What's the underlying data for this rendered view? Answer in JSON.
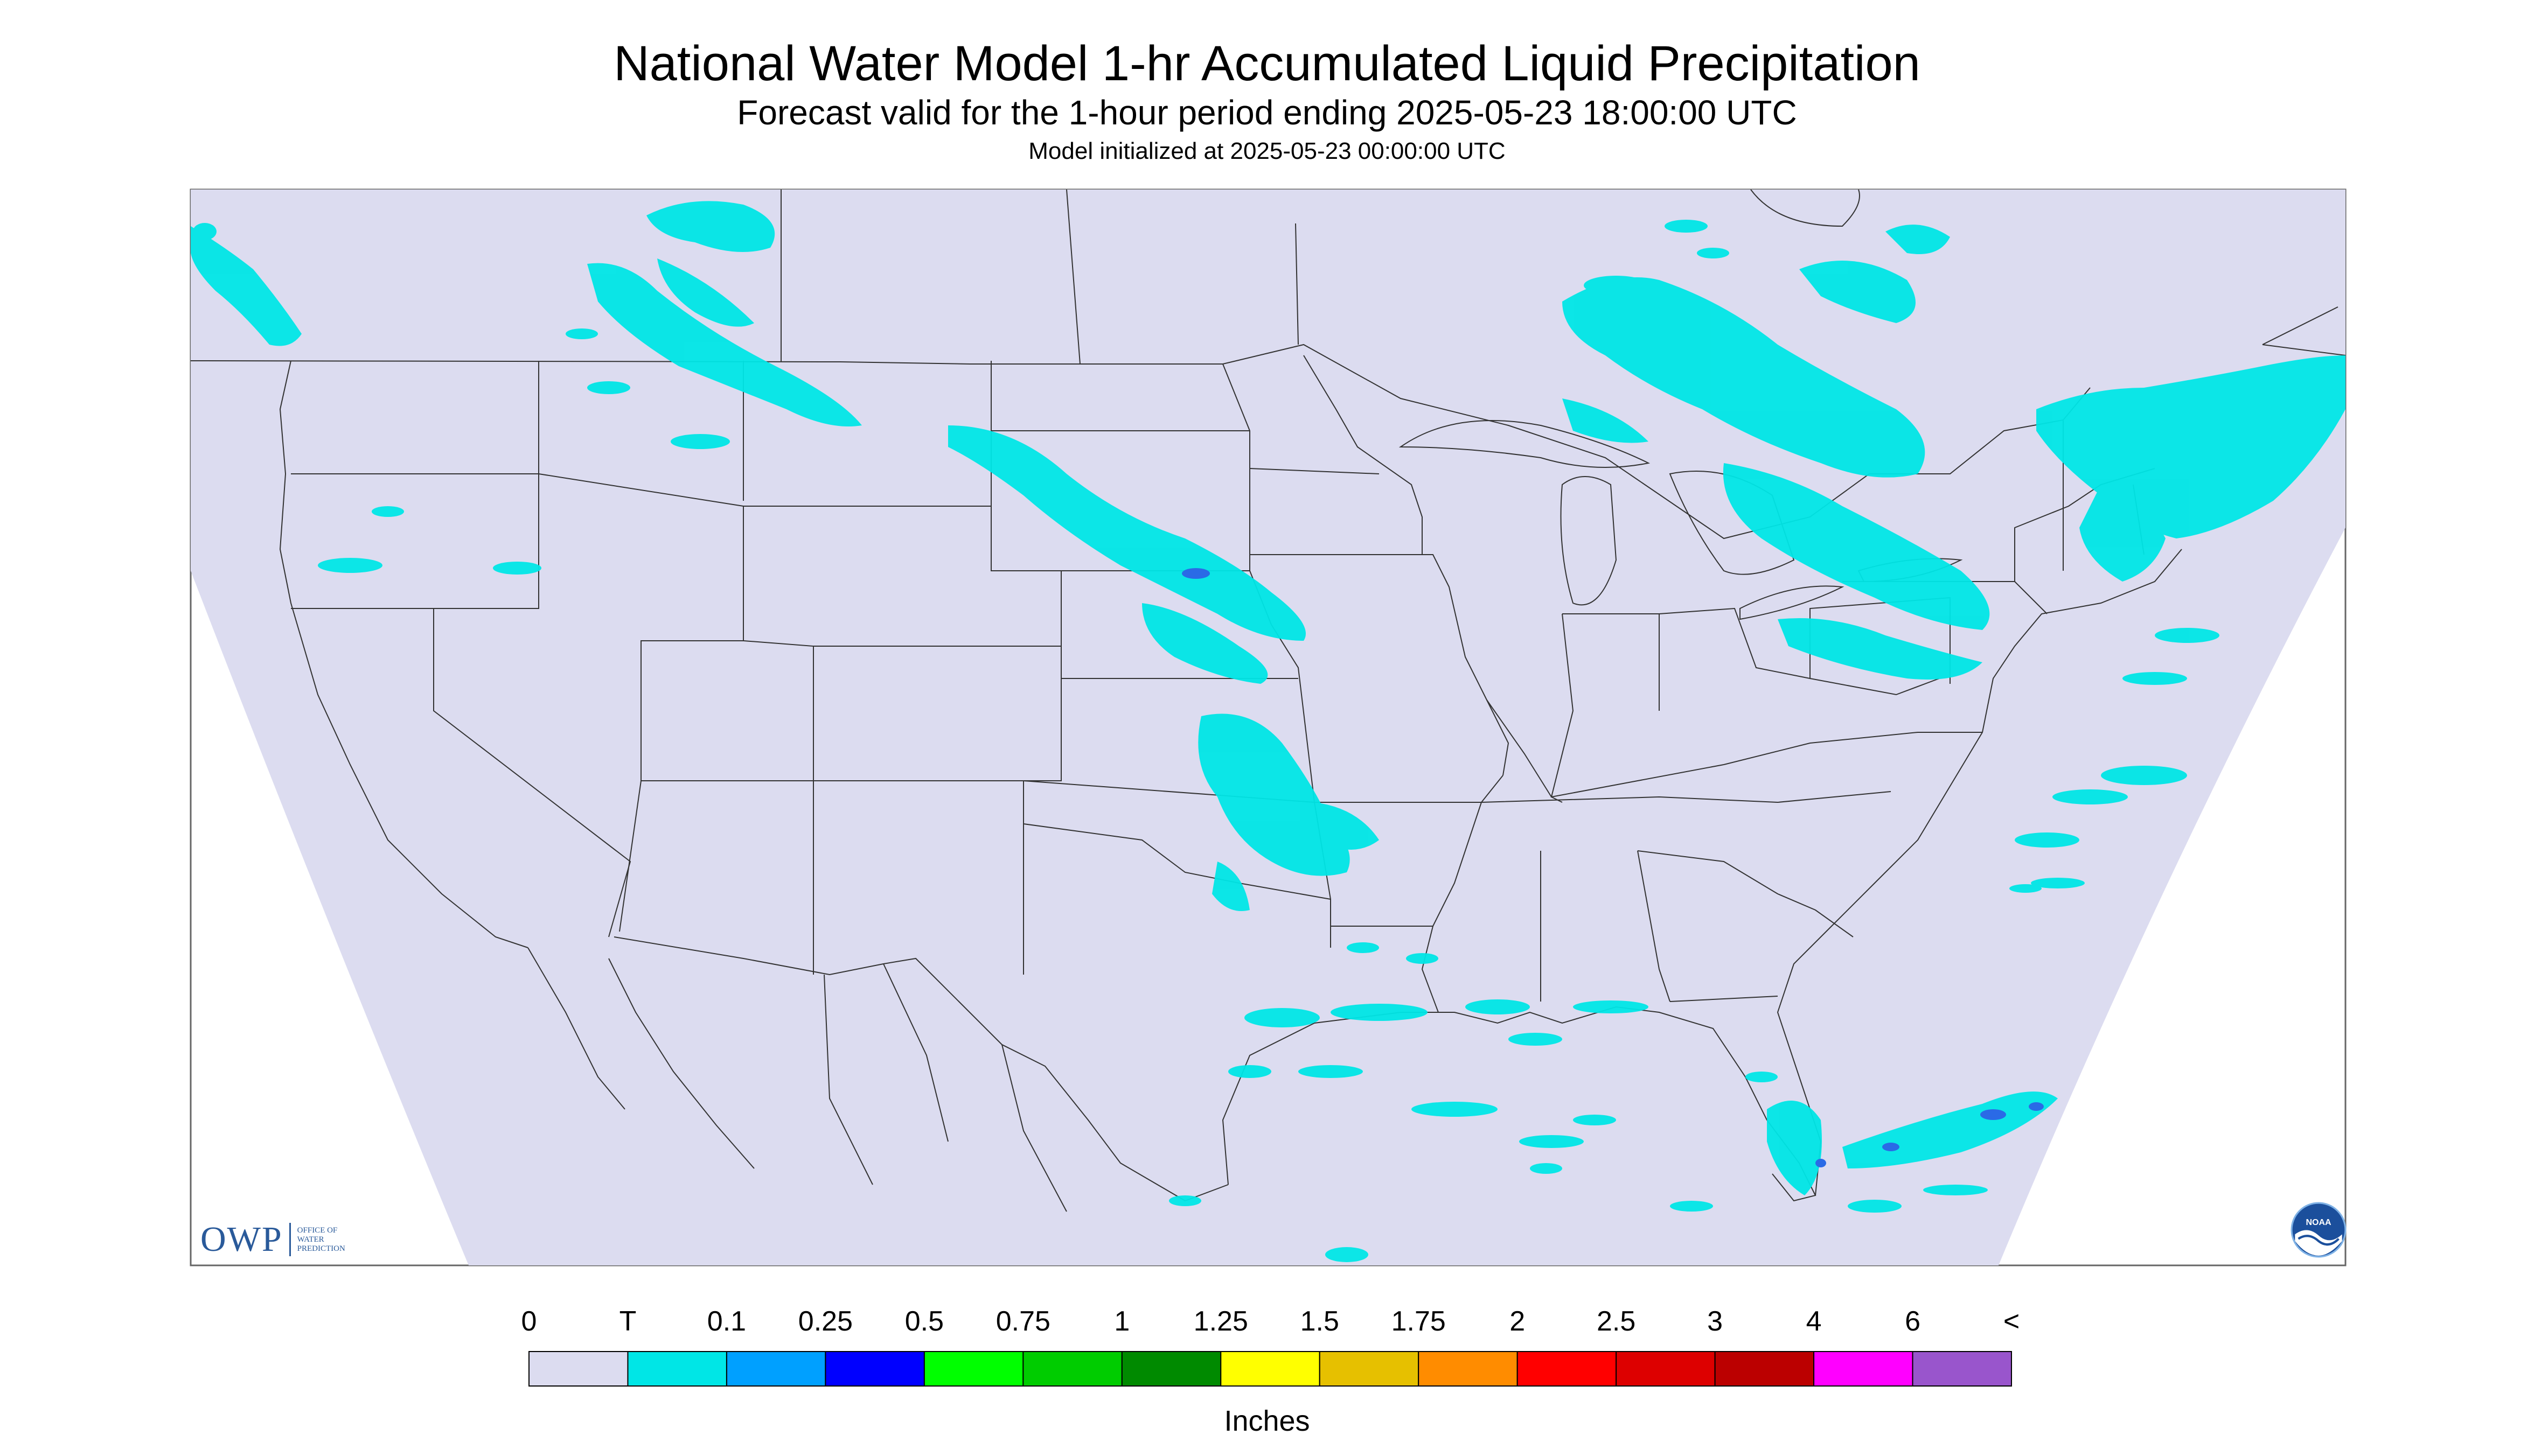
{
  "header": {
    "title": "National Water Model 1-hr Accumulated Liquid Precipitation",
    "subtitle": "Forecast valid for the 1-hour period ending 2025-05-23 18:00:00 UTC",
    "init_line": "Model initialized at 2025-05-23 00:00:00 UTC"
  },
  "colors": {
    "background": "#ffffff",
    "map_background": "#dcdcf0",
    "boundary_lines": "#333333",
    "trace_precip": "#00e6e6",
    "moderate_precip": "#2a6ae6",
    "heavy_precip": "#1a1aff"
  },
  "logos": {
    "owp_mark": "OWP",
    "owp_text": [
      "OFFICE OF",
      "WATER",
      "PREDICTION"
    ],
    "noaa_text": "NOAA"
  },
  "legend": {
    "tick_labels": [
      "0",
      "T",
      "0.1",
      "0.25",
      "0.5",
      "0.75",
      "1",
      "1.25",
      "1.5",
      "1.75",
      "2",
      "2.5",
      "3",
      "4",
      "6",
      "<"
    ],
    "colors": [
      "#dcdcf0",
      "#00e6e6",
      "#00a0ff",
      "#0000ff",
      "#00ff00",
      "#00cc00",
      "#008a00",
      "#ffff00",
      "#e6c000",
      "#ff8c00",
      "#ff0000",
      "#dd0000",
      "#bb0000",
      "#ff00ff",
      "#9955cc"
    ],
    "units": "Inches"
  },
  "precip_regions": [
    "Pacific Northwest coast",
    "Northern Rockies / Montana",
    "North Dakota to Nebraska band",
    "Kansas / Oklahoma",
    "Upper Great Lakes / Ontario",
    "New York / New England",
    "Gulf Coast",
    "South Florida / Bahamas"
  ]
}
